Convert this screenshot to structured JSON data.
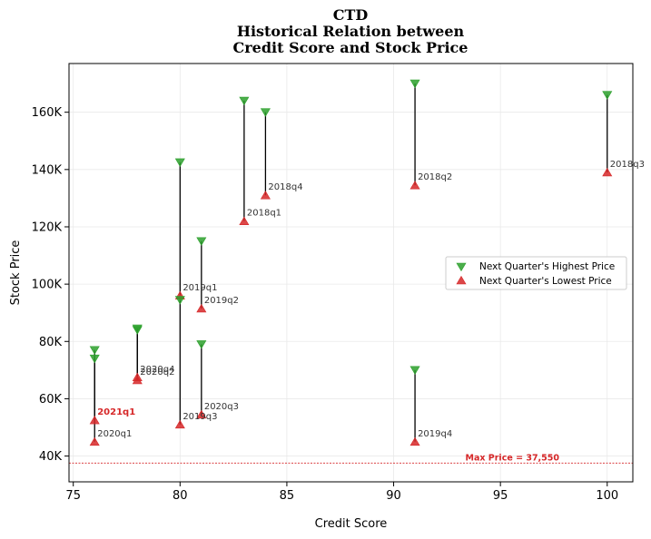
{
  "chart_data": {
    "type": "scatter",
    "title": [
      "CTD",
      "Historical Relation between",
      "Credit Score and Stock Price"
    ],
    "xlabel": "Credit Score",
    "ylabel": "Stock Price",
    "xlim": [
      74.8,
      101.2
    ],
    "ylim": [
      31000,
      177000
    ],
    "xticks": [
      75,
      80,
      85,
      90,
      95,
      100
    ],
    "yticks": [
      40000,
      60000,
      80000,
      100000,
      120000,
      140000,
      160000
    ],
    "ytick_labels": [
      "40K",
      "60K",
      "80K",
      "100K",
      "120K",
      "140K",
      "160K"
    ],
    "grid": true,
    "legend_position": "center-right",
    "series": [
      {
        "name": "Next Quarter's Highest Price",
        "marker": "triangle-down",
        "color": "#2ca02c"
      },
      {
        "name": "Next Quarter's Lowest Price",
        "marker": "triangle-up",
        "color": "#d62728"
      }
    ],
    "points": [
      {
        "label": "2018q1",
        "x": 83,
        "high": 164000,
        "low": 122000
      },
      {
        "label": "2018q2",
        "x": 91,
        "high": 170000,
        "low": 134500
      },
      {
        "label": "2018q3",
        "x": 100,
        "high": 166000,
        "low": 139000
      },
      {
        "label": "2018q4",
        "x": 84,
        "high": 160000,
        "low": 131000
      },
      {
        "label": "2019q1",
        "x": 80,
        "high": 142500,
        "low": 96000
      },
      {
        "label": "2019q2",
        "x": 81,
        "high": 115000,
        "low": 91500
      },
      {
        "label": "2019q3",
        "x": 80,
        "high": 94500,
        "low": 51000
      },
      {
        "label": "2019q4",
        "x": 91,
        "high": 70000,
        "low": 45000
      },
      {
        "label": "2020q1",
        "x": 76,
        "high": 77000,
        "low": 45000
      },
      {
        "label": "2020q2",
        "x": 78,
        "high": 84000,
        "low": 66500
      },
      {
        "label": "2020q3",
        "x": 81,
        "high": 79000,
        "low": 54500
      },
      {
        "label": "2020q4",
        "x": 78,
        "high": 84500,
        "low": 67500
      },
      {
        "label": "2021q1",
        "x": 76,
        "high": 74000,
        "low": 52500,
        "highlight": true
      }
    ],
    "reference_line": {
      "y": 37550,
      "label": "Max Price = 37,550",
      "color": "#d62728"
    }
  }
}
